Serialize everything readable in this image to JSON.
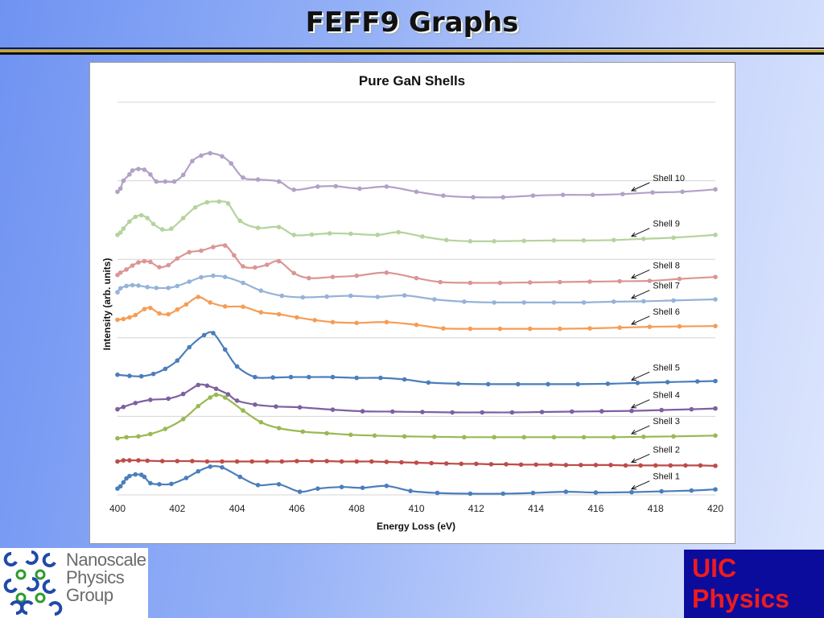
{
  "slide": {
    "title": "FEFF9 Graphs",
    "logo_text": "Nanoscale\nPhysics\nGroup",
    "badge_text": "UIC\nPhysics"
  },
  "chart_data": {
    "type": "line",
    "title": "Pure GaN Shells",
    "xlabel": "Energy Loss (eV)",
    "ylabel": "Intensity (arb. units)",
    "xlim": [
      400,
      420
    ],
    "xticks": [
      400,
      402,
      404,
      406,
      408,
      410,
      412,
      414,
      416,
      418,
      420
    ],
    "ylim": [
      0,
      10
    ],
    "yticks_visible": false,
    "grid": "horizontal",
    "legend": "none",
    "series": [
      {
        "name": "Shell 1",
        "color": "#4a7ebb",
        "x": [
          400,
          400.1,
          400.2,
          400.3,
          400.4,
          400.6,
          400.8,
          400.9,
          401.1,
          401.4,
          401.8,
          402.3,
          402.7,
          403.1,
          403.5,
          404.1,
          404.7,
          405.4,
          406.1,
          406.7,
          407.5,
          408.2,
          409,
          409.8,
          410.7,
          411.8,
          412.9,
          413.9,
          415,
          416,
          417.2,
          418.2,
          419.2,
          420
        ],
        "y": [
          0.16,
          0.22,
          0.32,
          0.42,
          0.48,
          0.52,
          0.51,
          0.46,
          0.3,
          0.27,
          0.28,
          0.43,
          0.6,
          0.72,
          0.7,
          0.46,
          0.25,
          0.27,
          0.08,
          0.16,
          0.2,
          0.18,
          0.23,
          0.1,
          0.05,
          0.03,
          0.03,
          0.05,
          0.08,
          0.06,
          0.07,
          0.09,
          0.11,
          0.14
        ]
      },
      {
        "name": "Shell 2",
        "color": "#be4b48",
        "x": [
          400,
          400.2,
          400.4,
          400.7,
          401,
          401.5,
          402,
          402.5,
          403,
          403.5,
          404,
          404.5,
          405,
          405.5,
          406,
          406.5,
          407,
          407.5,
          408,
          408.5,
          409,
          409.5,
          410,
          410.5,
          411,
          411.5,
          412,
          412.5,
          413,
          413.5,
          414,
          414.5,
          415,
          415.5,
          416,
          416.5,
          417,
          417.5,
          418,
          418.5,
          419,
          419.5,
          420
        ],
        "y": [
          0.85,
          0.88,
          0.88,
          0.88,
          0.87,
          0.86,
          0.86,
          0.86,
          0.85,
          0.85,
          0.85,
          0.85,
          0.85,
          0.85,
          0.86,
          0.86,
          0.86,
          0.85,
          0.85,
          0.85,
          0.84,
          0.83,
          0.82,
          0.81,
          0.8,
          0.79,
          0.79,
          0.78,
          0.78,
          0.77,
          0.77,
          0.77,
          0.76,
          0.76,
          0.76,
          0.76,
          0.75,
          0.75,
          0.75,
          0.75,
          0.75,
          0.75,
          0.74
        ]
      },
      {
        "name": "Shell 3",
        "color": "#98b954",
        "x": [
          400,
          400.3,
          400.7,
          401.1,
          401.6,
          402.2,
          402.7,
          403.1,
          403.3,
          403.6,
          404.2,
          404.8,
          405.4,
          406.2,
          407,
          407.8,
          408.6,
          409.6,
          410.6,
          411.6,
          412.6,
          413.6,
          414.6,
          415.6,
          416.6,
          417.6,
          418.6,
          420
        ],
        "y": [
          1.44,
          1.47,
          1.49,
          1.55,
          1.68,
          1.93,
          2.26,
          2.48,
          2.55,
          2.48,
          2.15,
          1.85,
          1.7,
          1.61,
          1.57,
          1.53,
          1.51,
          1.49,
          1.48,
          1.47,
          1.47,
          1.47,
          1.47,
          1.47,
          1.47,
          1.48,
          1.49,
          1.51
        ]
      },
      {
        "name": "Shell 4",
        "color": "#7d60a0",
        "x": [
          400,
          400.2,
          400.6,
          401.1,
          401.7,
          402.2,
          402.7,
          403.0,
          403.3,
          403.7,
          404.0,
          404.6,
          405.3,
          406.1,
          407.2,
          408.2,
          409.2,
          410.2,
          411.2,
          412.2,
          413.2,
          414.2,
          415.2,
          416.2,
          417.2,
          418.2,
          419.2,
          420
        ],
        "y": [
          2.18,
          2.24,
          2.34,
          2.42,
          2.45,
          2.57,
          2.8,
          2.78,
          2.7,
          2.56,
          2.4,
          2.3,
          2.25,
          2.23,
          2.17,
          2.13,
          2.12,
          2.11,
          2.1,
          2.1,
          2.1,
          2.11,
          2.12,
          2.13,
          2.14,
          2.16,
          2.18,
          2.2
        ]
      },
      {
        "name": "Shell 5",
        "color": "#4a7ebb",
        "x": [
          400,
          400.4,
          400.8,
          401.2,
          401.6,
          402,
          402.4,
          402.9,
          403.2,
          403.6,
          404,
          404.6,
          405.2,
          405.8,
          406.4,
          407.2,
          408,
          408.8,
          409.6,
          410.4,
          411.4,
          412.4,
          413.4,
          414.4,
          415.4,
          416.4,
          417.4,
          418.4,
          419.4,
          420
        ],
        "y": [
          3.06,
          3.03,
          3.02,
          3.08,
          3.21,
          3.42,
          3.76,
          4.07,
          4.12,
          3.7,
          3.27,
          3.0,
          2.99,
          3.0,
          3.0,
          3.0,
          2.98,
          2.98,
          2.94,
          2.86,
          2.83,
          2.82,
          2.82,
          2.82,
          2.82,
          2.83,
          2.85,
          2.87,
          2.89,
          2.9
        ]
      },
      {
        "name": "Shell 6",
        "color": "#f59d56",
        "x": [
          400,
          400.2,
          400.4,
          400.6,
          400.9,
          401.1,
          401.4,
          401.7,
          402.0,
          402.3,
          402.7,
          403.1,
          403.6,
          404.2,
          404.8,
          405.4,
          406,
          406.6,
          407.2,
          408,
          409,
          410,
          410.9,
          411.8,
          412.8,
          413.8,
          414.8,
          415.8,
          416.8,
          417.8,
          418.8,
          420
        ],
        "y": [
          4.46,
          4.48,
          4.52,
          4.58,
          4.73,
          4.76,
          4.62,
          4.6,
          4.72,
          4.85,
          5.04,
          4.9,
          4.8,
          4.79,
          4.65,
          4.6,
          4.52,
          4.45,
          4.4,
          4.38,
          4.4,
          4.33,
          4.24,
          4.23,
          4.23,
          4.23,
          4.23,
          4.24,
          4.26,
          4.28,
          4.29,
          4.3
        ]
      },
      {
        "name": "Shell 7",
        "color": "#95b3d7",
        "x": [
          400,
          400.1,
          400.3,
          400.5,
          400.7,
          401,
          401.3,
          401.7,
          402,
          402.4,
          402.8,
          403.2,
          403.6,
          404.2,
          404.8,
          405.5,
          406.2,
          407,
          407.8,
          408.7,
          409.6,
          410.6,
          411.6,
          412.6,
          413.6,
          414.6,
          415.6,
          416.6,
          417.6,
          418.6,
          420
        ],
        "y": [
          5.16,
          5.26,
          5.32,
          5.34,
          5.33,
          5.29,
          5.27,
          5.27,
          5.32,
          5.43,
          5.54,
          5.58,
          5.55,
          5.4,
          5.2,
          5.07,
          5.03,
          5.05,
          5.07,
          5.04,
          5.08,
          4.98,
          4.92,
          4.9,
          4.9,
          4.9,
          4.9,
          4.92,
          4.93,
          4.95,
          4.98
        ]
      },
      {
        "name": "Shell 8",
        "color": "#da9694",
        "x": [
          400,
          400.1,
          400.3,
          400.5,
          400.7,
          400.9,
          401.1,
          401.4,
          401.7,
          402,
          402.4,
          402.8,
          403.2,
          403.6,
          403.9,
          404.2,
          404.6,
          405.0,
          405.4,
          405.9,
          406.4,
          407.2,
          408,
          409,
          410,
          410.8,
          411.8,
          412.8,
          413.8,
          414.8,
          415.8,
          416.8,
          417.8,
          418.8,
          420
        ],
        "y": [
          5.6,
          5.66,
          5.74,
          5.84,
          5.92,
          5.95,
          5.93,
          5.8,
          5.85,
          6.02,
          6.18,
          6.22,
          6.31,
          6.35,
          6.1,
          5.82,
          5.79,
          5.86,
          5.95,
          5.65,
          5.52,
          5.55,
          5.58,
          5.66,
          5.52,
          5.42,
          5.4,
          5.4,
          5.41,
          5.42,
          5.43,
          5.44,
          5.45,
          5.5,
          5.55
        ]
      },
      {
        "name": "Shell 9",
        "color": "#b5d39c",
        "x": [
          400,
          400.1,
          400.2,
          400.4,
          400.6,
          400.8,
          401.0,
          401.2,
          401.5,
          401.8,
          402.2,
          402.6,
          403.0,
          403.4,
          403.7,
          404.1,
          404.7,
          405.4,
          405.9,
          406.5,
          407.1,
          407.8,
          408.7,
          409.4,
          410.2,
          411.0,
          411.8,
          412.6,
          413.6,
          414.6,
          415.6,
          416.6,
          417.6,
          418.6,
          420
        ],
        "y": [
          6.62,
          6.68,
          6.78,
          6.96,
          7.08,
          7.12,
          7.05,
          6.9,
          6.76,
          6.78,
          7.05,
          7.32,
          7.45,
          7.47,
          7.42,
          6.98,
          6.8,
          6.82,
          6.62,
          6.63,
          6.66,
          6.65,
          6.62,
          6.69,
          6.58,
          6.49,
          6.46,
          6.46,
          6.47,
          6.48,
          6.48,
          6.49,
          6.52,
          6.55,
          6.62
        ]
      },
      {
        "name": "Shell 10",
        "color": "#b2a1c7",
        "x": [
          400,
          400.1,
          400.2,
          400.4,
          400.5,
          400.7,
          400.9,
          401.1,
          401.3,
          401.6,
          401.9,
          402.2,
          402.5,
          402.8,
          403.1,
          403.5,
          403.8,
          404.2,
          404.7,
          405.4,
          405.9,
          406.7,
          407.3,
          408.1,
          409.0,
          410.0,
          410.9,
          411.9,
          412.9,
          413.9,
          414.9,
          415.9,
          416.9,
          417.9,
          418.9,
          420
        ],
        "y": [
          7.72,
          7.8,
          8.0,
          8.16,
          8.26,
          8.3,
          8.28,
          8.16,
          7.98,
          7.98,
          7.98,
          8.15,
          8.5,
          8.64,
          8.7,
          8.62,
          8.44,
          8.08,
          8.03,
          7.98,
          7.77,
          7.85,
          7.86,
          7.8,
          7.85,
          7.72,
          7.62,
          7.58,
          7.58,
          7.62,
          7.64,
          7.64,
          7.66,
          7.7,
          7.72,
          7.78
        ]
      }
    ],
    "annotations": [
      {
        "text": "Shell 10",
        "series": "Shell 10"
      },
      {
        "text": "Shell 9",
        "series": "Shell 9"
      },
      {
        "text": "Shell 8",
        "series": "Shell 8"
      },
      {
        "text": "Shell 7",
        "series": "Shell 7"
      },
      {
        "text": "Shell 6",
        "series": "Shell 6"
      },
      {
        "text": "Shell 5",
        "series": "Shell 5"
      },
      {
        "text": "Shell 4",
        "series": "Shell 4"
      },
      {
        "text": "Shell 3",
        "series": "Shell 3"
      },
      {
        "text": "Shell 2",
        "series": "Shell 2"
      },
      {
        "text": "Shell 1",
        "series": "Shell 1"
      }
    ]
  }
}
